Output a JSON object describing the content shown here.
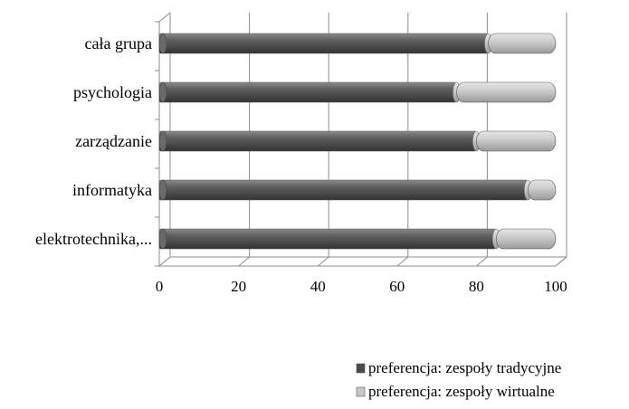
{
  "chart_data": {
    "type": "bar",
    "orientation": "horizontal",
    "stacked": true,
    "style": "3d-cylinder",
    "title": "",
    "xlabel": "",
    "ylabel": "",
    "categories": [
      "cała grupa",
      "psychologia",
      "zarządzanie",
      "informatyka",
      "elektrotechnika,..."
    ],
    "series": [
      {
        "name": "preferencja: zespoły tradycyjne",
        "values": [
          83,
          75,
          80,
          93,
          85
        ],
        "color": "#595959"
      },
      {
        "name": "preferencja: zespoły wirtualne",
        "values": [
          17,
          25,
          20,
          7,
          15
        ],
        "color": "#c8c8c8"
      }
    ],
    "xlim": [
      0,
      100
    ],
    "xticks": [
      0,
      20,
      40,
      60,
      80,
      100
    ],
    "grid": true,
    "legend_position": "bottom-right"
  }
}
